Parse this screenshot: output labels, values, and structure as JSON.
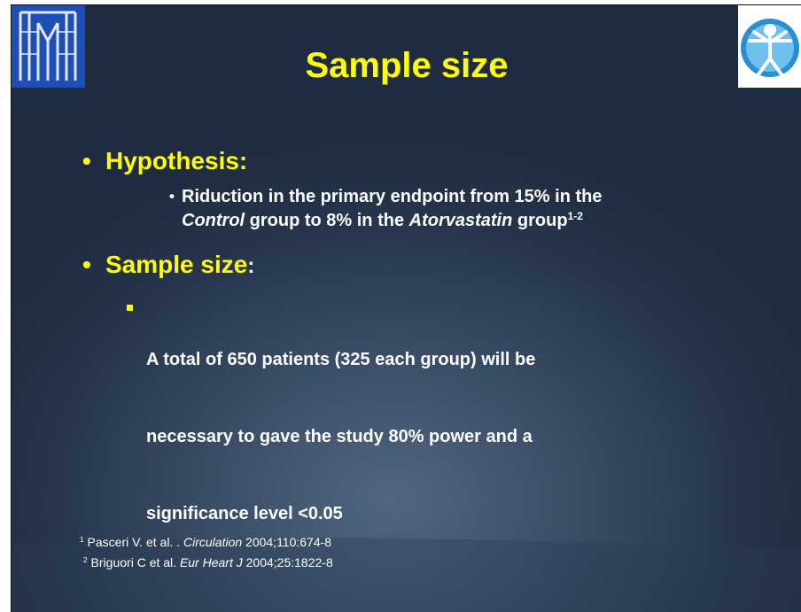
{
  "header": {
    "title": "Sample size"
  },
  "hypothesis": {
    "bullet": "•",
    "heading": "Hypothesis:",
    "sub_bullet": "•",
    "line1": "Riduction in the primary endpoint from 15% in the",
    "line2": [
      "Control",
      " group to 8% in the ",
      "Atorvastatin",
      " group",
      "1-2"
    ]
  },
  "sample_size": {
    "bullet": "•",
    "heading": "Sample size",
    "colon": ":",
    "lines": [
      "A total of 650 patients (325 each group) will be",
      "necessary to gave the study 80% power and a",
      "significance level <0.05"
    ]
  },
  "footnotes": [
    [
      "1",
      " Pasceri V. et al. . ",
      "Circulation",
      " 2004;110:674-8"
    ],
    [
      "2",
      " Briguori C et al. ",
      "Eur Heart J",
      " 2004;25:1822-8"
    ]
  ]
}
